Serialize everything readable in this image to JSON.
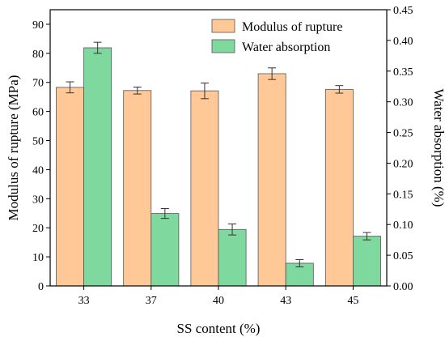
{
  "chart_data": {
    "type": "bar",
    "categories": [
      "33",
      "37",
      "40",
      "43",
      "45"
    ],
    "xlabel": "SS content (%)",
    "ylabel": "Modulus of rupture (MPa)",
    "y2label": "Water absorption (%)",
    "ylim": [
      0,
      95
    ],
    "y2lim": [
      0,
      0.45
    ],
    "yticks": [
      "0",
      "10",
      "20",
      "30",
      "40",
      "50",
      "60",
      "70",
      "80",
      "90"
    ],
    "y2ticks": [
      "0.00",
      "0.05",
      "0.10",
      "0.15",
      "0.20",
      "0.25",
      "0.30",
      "0.35",
      "0.40",
      "0.45"
    ],
    "legend_position": "top-right",
    "series": [
      {
        "name": "Modulus of rupture",
        "axis": "left",
        "color": "#FFC896",
        "values": [
          68.3,
          67.2,
          67.1,
          73.0,
          67.6
        ],
        "errors": [
          1.9,
          1.2,
          2.7,
          2.0,
          1.3
        ]
      },
      {
        "name": "Water absorption",
        "axis": "right",
        "color": "#7FD89E",
        "values": [
          0.388,
          0.118,
          0.092,
          0.037,
          0.081
        ],
        "errors": [
          0.009,
          0.008,
          0.009,
          0.006,
          0.006
        ]
      }
    ]
  }
}
